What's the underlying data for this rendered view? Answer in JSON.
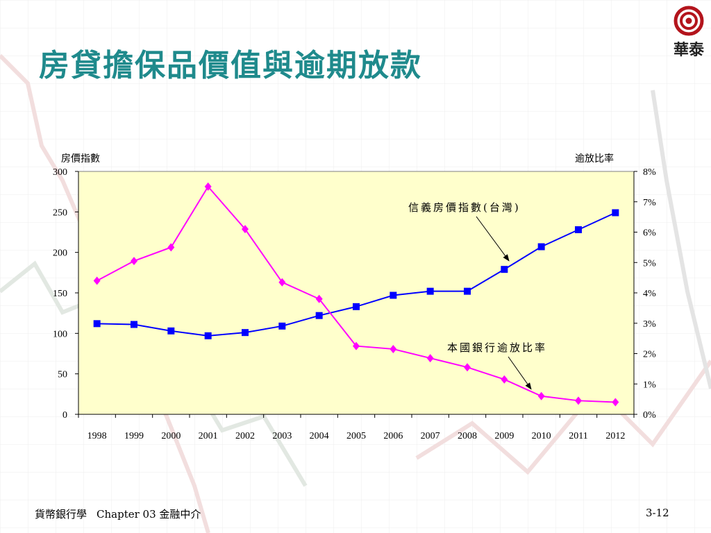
{
  "slide": {
    "title": "房貸擔保品價值與逾期放款",
    "logo_text": "華泰",
    "footer_course": "貨幣銀行學",
    "footer_chapter": "Chapter 03 金融中介",
    "page_number": "3-12"
  },
  "colors": {
    "title": "#1f8a8c",
    "plot_bg": "#ffffcc",
    "house_price": "#0000ff",
    "overdue_ratio": "#ff00ff",
    "logo_red": "#b3141c"
  },
  "chart_data": {
    "type": "line",
    "title": "",
    "y_left_label": "房價指數",
    "y_right_label": "逾放比率",
    "y_left_range": [
      0,
      300
    ],
    "y_left_ticks": [
      "300",
      "250",
      "200",
      "150",
      "100",
      "50",
      "0"
    ],
    "y_right_range": [
      0,
      8
    ],
    "y_right_ticks": [
      "8%",
      "7%",
      "6%",
      "5%",
      "4%",
      "3%",
      "2%",
      "1%",
      "0%"
    ],
    "categories": [
      "1998",
      "1999",
      "2000",
      "2001",
      "2002",
      "2003",
      "2004",
      "2005",
      "2006",
      "2007",
      "2008",
      "2009",
      "2010",
      "2011",
      "2012"
    ],
    "grid": false,
    "series": [
      {
        "name": "信義房價指數(台灣)",
        "axis": "left",
        "marker": "square",
        "values": [
          112,
          111,
          103,
          97,
          101,
          109,
          122,
          133,
          147,
          152,
          152,
          179,
          207,
          228,
          249
        ]
      },
      {
        "name": "本國銀行逾放比率",
        "axis": "right",
        "marker": "diamond",
        "values": [
          4.4,
          5.05,
          5.5,
          7.5,
          6.1,
          4.35,
          3.8,
          2.25,
          2.15,
          1.85,
          1.55,
          1.15,
          0.6,
          0.45,
          0.4
        ]
      }
    ],
    "annotations": [
      {
        "text": "信義房價指數(台灣)",
        "series": 0
      },
      {
        "text": "本國銀行逾放比率",
        "series": 1
      }
    ]
  }
}
